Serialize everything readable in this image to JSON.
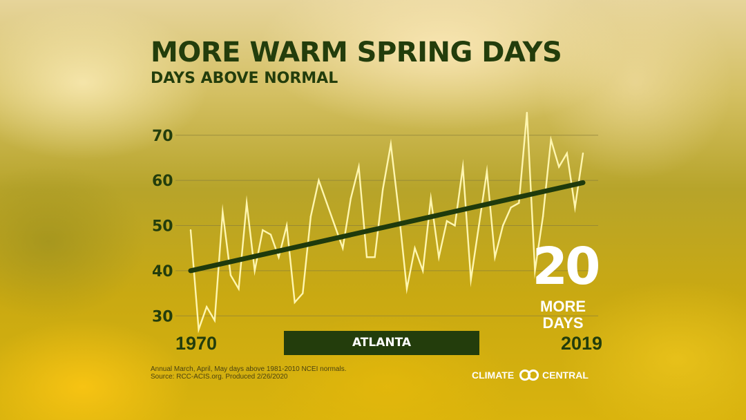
{
  "header": {
    "title": "MORE WARM SPRING DAYS",
    "subtitle": "DAYS ABOVE NORMAL"
  },
  "callout": {
    "number": "20",
    "label": "MORE DAYS"
  },
  "location": {
    "label": "ATLANTA"
  },
  "footer": {
    "note_line1": "Annual March, April, May days above 1981-2010 NCEI normals.",
    "note_line2": "Source: RCC-ACIS.org. Produced 2/26/2020",
    "brand_word1": "CLIMATE",
    "brand_word2": "CENTRAL",
    "brand_logo_icon": "linked-rings-icon"
  },
  "colors": {
    "title_text": "#233d0c",
    "series_line": "#fff6b0",
    "trend_line": "#1f3a0c",
    "location_bar": "#233d0c",
    "callout_text": "#ffffff",
    "gridline": "#8a7f3a"
  },
  "chart_data": {
    "type": "line",
    "x_start_label": "1970",
    "x_end_label": "2019",
    "ylim": [
      25,
      77
    ],
    "yticks": [
      30,
      40,
      50,
      60,
      70
    ],
    "grid": true,
    "series": [
      {
        "role": "data",
        "x": [
          1970,
          1971,
          1972,
          1973,
          1974,
          1975,
          1976,
          1977,
          1978,
          1979,
          1980,
          1981,
          1982,
          1983,
          1984,
          1985,
          1986,
          1987,
          1988,
          1989,
          1990,
          1991,
          1992,
          1993,
          1994,
          1995,
          1996,
          1997,
          1998,
          1999,
          2000,
          2001,
          2002,
          2003,
          2004,
          2005,
          2006,
          2007,
          2008,
          2009,
          2010,
          2011,
          2012,
          2013,
          2014,
          2015,
          2016,
          2017,
          2018,
          2019
        ],
        "values": [
          49,
          27,
          32,
          29,
          53,
          39,
          36,
          55,
          40,
          49,
          48,
          43,
          50,
          33,
          35,
          52,
          60,
          55,
          50,
          45,
          56,
          63,
          43,
          43,
          58,
          68,
          53,
          36,
          45,
          40,
          56,
          43,
          51,
          50,
          63,
          38,
          50,
          62,
          43,
          50,
          54,
          55,
          75,
          40,
          52,
          69,
          63,
          66,
          54,
          66
        ]
      },
      {
        "role": "trend",
        "x": [
          1970,
          2019
        ],
        "values": [
          40,
          59.5
        ]
      }
    ]
  }
}
